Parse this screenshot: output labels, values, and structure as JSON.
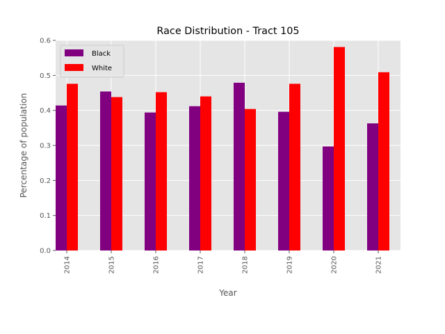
{
  "chart_data": {
    "type": "bar",
    "title": "Race Distribution - Tract 105",
    "xlabel": "Year",
    "ylabel": "Percentage of population",
    "categories": [
      "2014",
      "2015",
      "2016",
      "2017",
      "2018",
      "2019",
      "2020",
      "2021"
    ],
    "series": [
      {
        "name": "Black",
        "color": "#800080",
        "values": [
          0.414,
          0.454,
          0.394,
          0.412,
          0.479,
          0.396,
          0.297,
          0.363
        ]
      },
      {
        "name": "White",
        "color": "#ff0000",
        "values": [
          0.476,
          0.438,
          0.452,
          0.44,
          0.404,
          0.476,
          0.581,
          0.509
        ]
      }
    ],
    "ylim": [
      0,
      0.6
    ],
    "yticks": [
      "0.0",
      "0.1",
      "0.2",
      "0.3",
      "0.4",
      "0.5",
      "0.6"
    ],
    "grid": true,
    "legend_position": "upper-left",
    "plot_background": "#e5e5e5"
  }
}
